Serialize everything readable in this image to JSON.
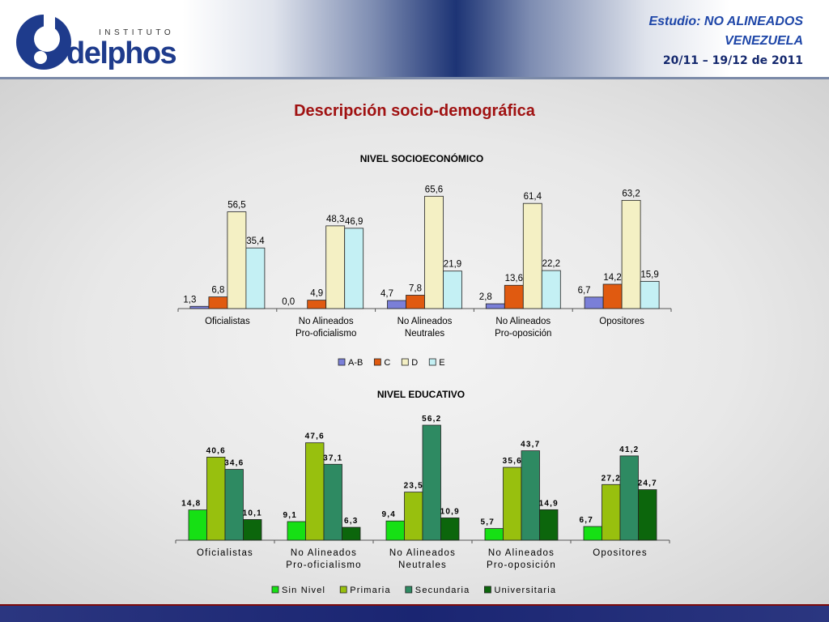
{
  "header": {
    "logo_small": "INSTITUTO",
    "logo_brand": "delphos",
    "study_label": "Estudio:",
    "study_name": "NO ALINEADOS",
    "country": "VENEZUELA",
    "dates": "20/11 – 19/12 de 2011"
  },
  "page_title": "Descripción socio-demográfica",
  "colors": {
    "A-B": "#7a7fd8",
    "C": "#e05a10",
    "D": "#f4f0c4",
    "E": "#c4f0f4",
    "Sin Nivel": "#16e014",
    "Primaria": "#98c00e",
    "Secundaria": "#2e8a62",
    "Universitaria": "#0c660c"
  },
  "chart_data": [
    {
      "type": "bar",
      "title": "NIVEL SOCIOECONÓMICO",
      "categories": [
        [
          "Oficialistas"
        ],
        [
          "No Alineados",
          "Pro-oficialismo"
        ],
        [
          "No Alineados",
          "Neutrales"
        ],
        [
          "No Alineados",
          "Pro-oposición"
        ],
        [
          "Opositores"
        ]
      ],
      "series": [
        {
          "name": "A-B",
          "values": [
            1.3,
            0.0,
            4.7,
            2.8,
            6.7
          ],
          "labels": [
            "1,3",
            "0,0",
            "4,7",
            "2,8",
            "6,7"
          ]
        },
        {
          "name": "C",
          "values": [
            6.8,
            4.9,
            7.8,
            13.6,
            14.2
          ],
          "labels": [
            "6,8",
            "4,9",
            "7,8",
            "13,6",
            "14,2"
          ]
        },
        {
          "name": "D",
          "values": [
            56.5,
            48.3,
            65.6,
            61.4,
            63.2
          ],
          "labels": [
            "56,5",
            "48,3",
            "65,6",
            "61,4",
            "63,2"
          ]
        },
        {
          "name": "E",
          "values": [
            35.4,
            46.9,
            21.9,
            22.2,
            15.9
          ],
          "labels": [
            "35,4",
            "46,9",
            "21,9",
            "22,2",
            "15,9"
          ]
        }
      ],
      "ylim": [
        0,
        70
      ],
      "legend": "bottom"
    },
    {
      "type": "bar",
      "title": "NIVEL EDUCATIVO",
      "categories": [
        [
          "Oficialistas"
        ],
        [
          "No Alineados",
          "Pro-oficialismo"
        ],
        [
          "No Alineados",
          "Neutrales"
        ],
        [
          "No Alineados",
          "Pro-oposición"
        ],
        [
          "Opositores"
        ]
      ],
      "series": [
        {
          "name": "Sin Nivel",
          "values": [
            14.8,
            9.1,
            9.4,
            5.7,
            6.7
          ],
          "labels": [
            "14,8",
            "9,1",
            "9,4",
            "5,7",
            "6,7"
          ]
        },
        {
          "name": "Primaria",
          "values": [
            40.6,
            47.6,
            23.5,
            35.6,
            27.2
          ],
          "labels": [
            "40,6",
            "47,6",
            "23,5",
            "35,6",
            "27,2"
          ]
        },
        {
          "name": "Secundaria",
          "values": [
            34.6,
            37.1,
            56.2,
            43.7,
            41.2
          ],
          "labels": [
            "34,6",
            "37,1",
            "56,2",
            "43,7",
            "41,2"
          ]
        },
        {
          "name": "Universitaria",
          "values": [
            10.1,
            6.3,
            10.9,
            14.9,
            24.7
          ],
          "labels": [
            "10,1",
            "6,3",
            "10,9",
            "14,9",
            "24,7"
          ]
        }
      ],
      "ylim": [
        0,
        56.2
      ],
      "legend": "bottom"
    }
  ]
}
